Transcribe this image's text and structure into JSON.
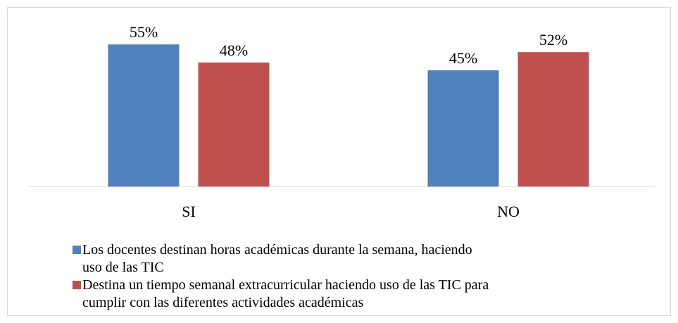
{
  "chart_data": {
    "type": "bar",
    "categories": [
      "SI",
      "NO"
    ],
    "series": [
      {
        "name": "Los docentes destinan horas académicas durante la semana, haciendo uso de las TIC",
        "color": "#4f81bd",
        "values": [
          55,
          45
        ],
        "value_labels": [
          "55%",
          "45%"
        ]
      },
      {
        "name": "Destina un tiempo semanal extracurricular haciendo uso de las TIC para cumplir con las diferentes actividades académicas",
        "color": "#c0504d",
        "values": [
          48,
          52
        ],
        "value_labels": [
          "48%",
          "52%"
        ]
      }
    ],
    "legend": "bottom"
  }
}
